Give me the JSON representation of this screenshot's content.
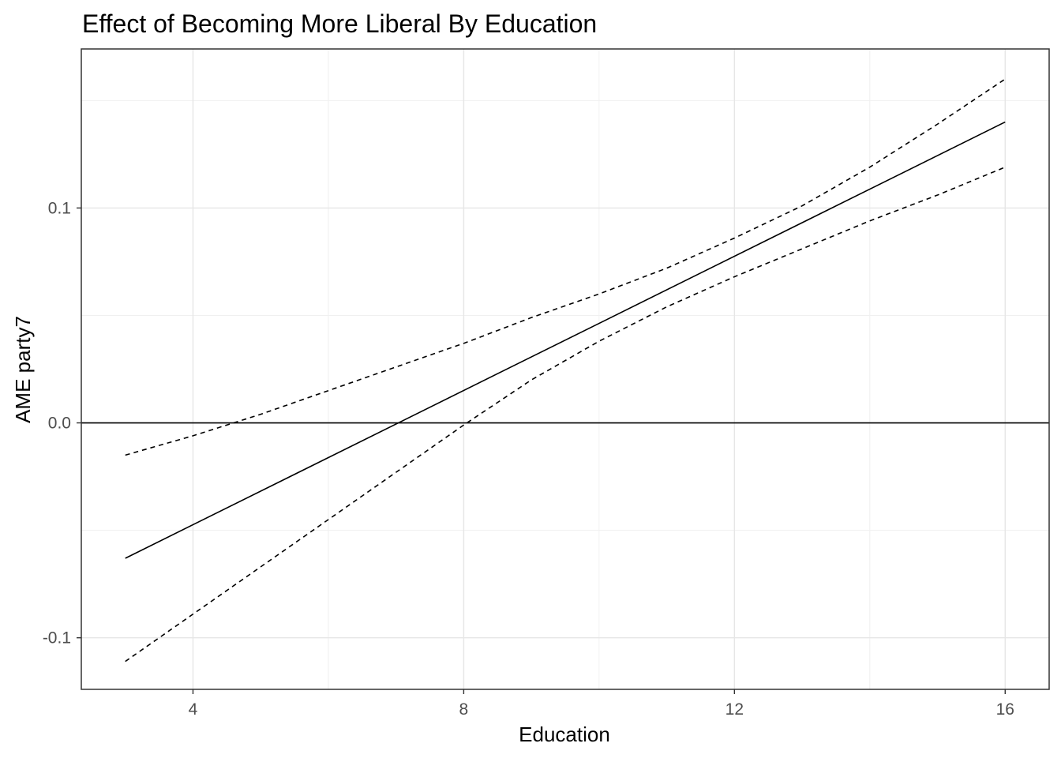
{
  "chart_data": {
    "type": "line",
    "title": "Effect of Becoming More Liberal By Education",
    "xlabel": "Education",
    "ylabel": "AME party7",
    "xlim": [
      2.35,
      16.65
    ],
    "ylim": [
      -0.124,
      0.174
    ],
    "x_ticks": [
      {
        "value": 4,
        "label": "4"
      },
      {
        "value": 8,
        "label": "8"
      },
      {
        "value": 12,
        "label": "12"
      },
      {
        "value": 16,
        "label": "16"
      }
    ],
    "x_minor_ticks": [
      6,
      10,
      14
    ],
    "y_ticks": [
      {
        "value": -0.1,
        "label": "-0.1"
      },
      {
        "value": 0.0,
        "label": "0.0"
      },
      {
        "value": 0.1,
        "label": "0.1"
      }
    ],
    "y_minor_ticks": [
      -0.05,
      0.05,
      0.15
    ],
    "grid": true,
    "reference_line": {
      "y": 0
    },
    "series": [
      {
        "role": "estimate",
        "style": "solid",
        "x": [
          3,
          16
        ],
        "y": [
          -0.063,
          0.14
        ]
      },
      {
        "role": "upper_bound",
        "style": "dashed",
        "x": [
          3,
          4,
          5,
          6,
          7,
          8,
          9,
          10,
          11,
          12,
          13,
          14,
          15,
          16
        ],
        "y": [
          -0.015,
          -0.006,
          0.004,
          0.015,
          0.026,
          0.037,
          0.049,
          0.06,
          0.072,
          0.086,
          0.101,
          0.119,
          0.139,
          0.16
        ]
      },
      {
        "role": "lower_bound",
        "style": "dashed",
        "x": [
          3,
          4,
          5,
          6,
          7,
          8,
          9,
          10,
          11,
          12,
          13,
          14,
          15,
          16
        ],
        "y": [
          -0.111,
          -0.089,
          -0.067,
          -0.045,
          -0.023,
          -0.001,
          0.02,
          0.038,
          0.054,
          0.068,
          0.081,
          0.094,
          0.106,
          0.119
        ]
      }
    ]
  }
}
